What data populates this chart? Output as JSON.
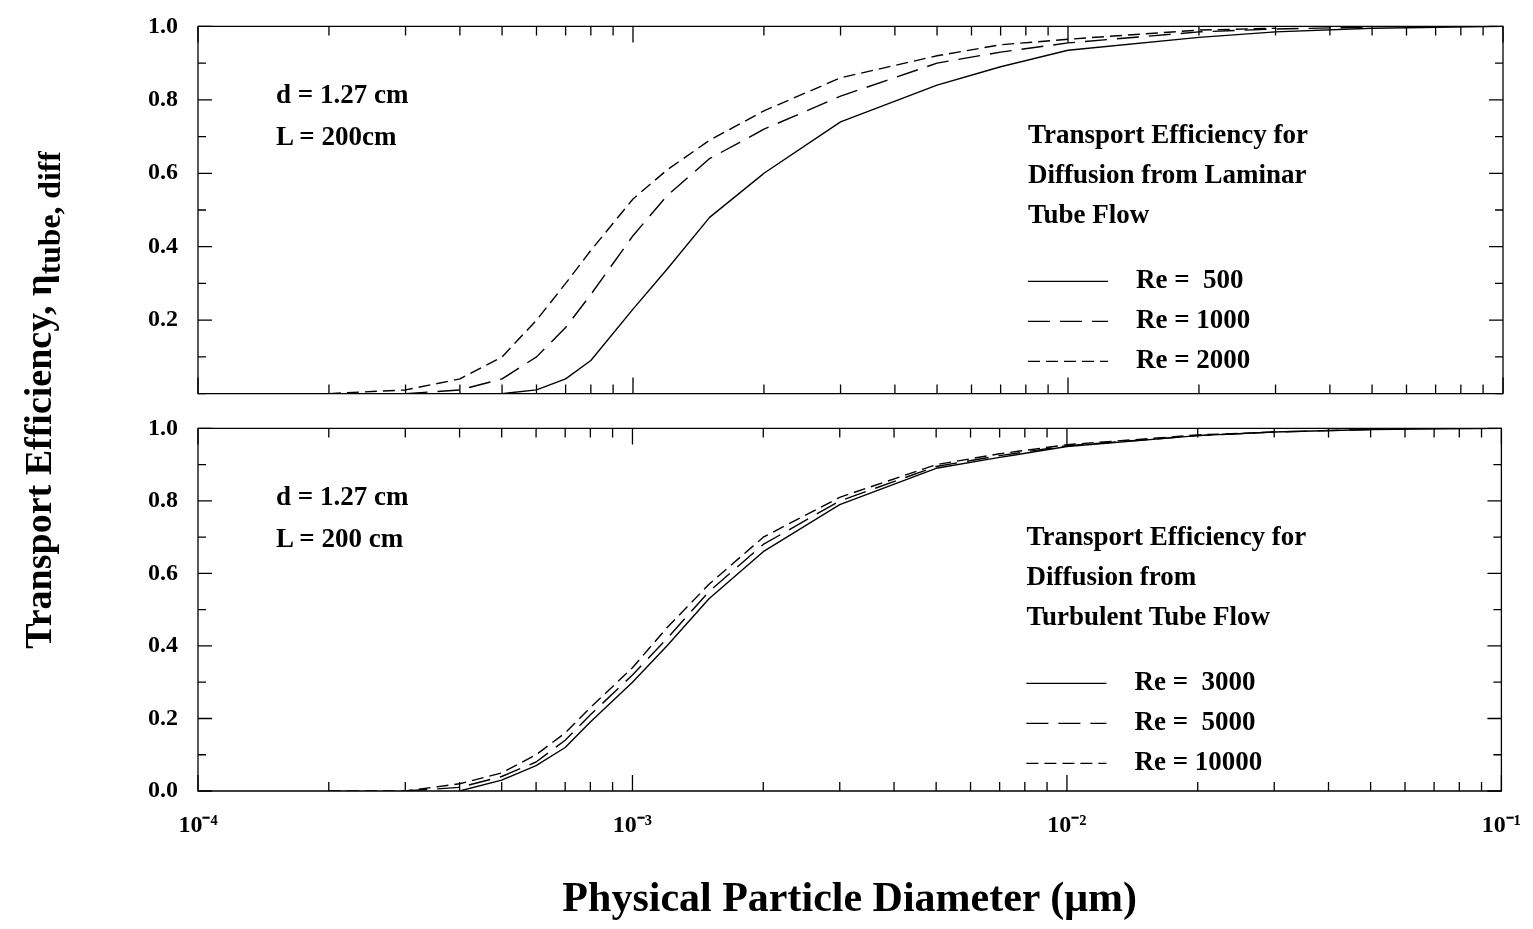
{
  "chart_data": [
    {
      "type": "line",
      "ylabel": "Transport Efficiency, η$_{tube, diff}$",
      "annotations": [
        "d = 1.27 cm",
        "L = 200cm"
      ],
      "legend_title": "Transport Efficiency for Diffusion from Laminar Tube Flow",
      "legend": "right",
      "log": "x",
      "tick_labels": "y",
      "xlim": [
        0.0001,
        0.1
      ],
      "xticks": [
        {
          "value": 0.0001,
          "label": null
        },
        {
          "value": 0.0002,
          "label": null
        },
        {
          "value": 0.0003,
          "label": null
        },
        {
          "value": 0.0004,
          "label": null
        },
        {
          "value": 0.0005,
          "label": null
        },
        {
          "value": 0.0006,
          "label": null
        },
        {
          "value": 0.0007,
          "label": null
        },
        {
          "value": 0.0008,
          "label": null
        },
        {
          "value": 0.0009,
          "label": null
        },
        {
          "value": 0.001,
          "label": null
        },
        {
          "value": 0.002,
          "label": null
        },
        {
          "value": 0.003,
          "label": null
        },
        {
          "value": 0.004,
          "label": null
        },
        {
          "value": 0.005,
          "label": null
        },
        {
          "value": 0.006,
          "label": null
        },
        {
          "value": 0.007,
          "label": null
        },
        {
          "value": 0.008,
          "label": null
        },
        {
          "value": 0.009,
          "label": null
        },
        {
          "value": 0.01,
          "label": null
        },
        {
          "value": 0.02,
          "label": null
        },
        {
          "value": 0.03,
          "label": null
        },
        {
          "value": 0.04,
          "label": null
        },
        {
          "value": 0.05,
          "label": null
        },
        {
          "value": 0.06,
          "label": null
        },
        {
          "value": 0.07,
          "label": null
        },
        {
          "value": 0.08,
          "label": null
        },
        {
          "value": 0.09,
          "label": null
        },
        {
          "value": 0.1,
          "label": null
        }
      ],
      "ylim": [
        0,
        1
      ],
      "yticks": [
        {
          "value": 0,
          "label": null
        },
        {
          "value": 0.1,
          "label": null
        },
        {
          "value": 0.2,
          "label": "0.2"
        },
        {
          "value": 0.3,
          "label": null
        },
        {
          "value": 0.4,
          "label": "0.4"
        },
        {
          "value": 0.5,
          "label": null
        },
        {
          "value": 0.6,
          "label": "0.6"
        },
        {
          "value": 0.7,
          "label": null
        },
        {
          "value": 0.8,
          "label": "0.8"
        },
        {
          "value": 0.9,
          "label": null
        },
        {
          "value": 1,
          "label": "1.0"
        }
      ],
      "series": [
        {
          "name": "Re =  500",
          "color": "#000000",
          "line_style": "solid",
          "x": [
            0.0005,
            0.0006,
            0.0007,
            0.0008,
            0.001,
            0.0012,
            0.0015,
            0.002,
            0.003,
            0.005,
            0.007,
            0.01,
            0.02,
            0.03,
            0.05,
            0.1
          ],
          "values": [
            0,
            0.01,
            0.04,
            0.09,
            0.23,
            0.34,
            0.48,
            0.6,
            0.74,
            0.84,
            0.89,
            0.935,
            0.97,
            0.985,
            0.995,
            1
          ]
        },
        {
          "name": "Re = 1000",
          "color": "#000000",
          "line_style": "dashed",
          "x": [
            0.0003,
            0.0004,
            0.0005,
            0.0006,
            0.0007,
            0.0008,
            0.001,
            0.0012,
            0.0015,
            0.002,
            0.003,
            0.005,
            0.007,
            0.01,
            0.02,
            0.03,
            0.05
          ],
          "values": [
            0,
            0.01,
            0.04,
            0.1,
            0.18,
            0.27,
            0.43,
            0.54,
            0.64,
            0.72,
            0.81,
            0.9,
            0.93,
            0.955,
            0.985,
            0.993,
            0.998
          ]
        },
        {
          "name": "Re = 2000",
          "color": "#000000",
          "line_style": "dashed",
          "x": [
            0.0002,
            0.0003,
            0.0004,
            0.0005,
            0.0006,
            0.0007,
            0.0008,
            0.001,
            0.0012,
            0.0015,
            0.002,
            0.003,
            0.005,
            0.007,
            0.01,
            0.02,
            0.03
          ],
          "values": [
            0,
            0.01,
            0.04,
            0.1,
            0.2,
            0.3,
            0.39,
            0.53,
            0.61,
            0.69,
            0.77,
            0.86,
            0.92,
            0.95,
            0.965,
            0.99,
            0.995
          ]
        }
      ]
    },
    {
      "type": "line",
      "xlabel": "Physical Particle Diameter (μm)",
      "annotations": [
        "d = 1.27 cm",
        "L = 200 cm"
      ],
      "legend_title": "Transport Efficiency for Diffusion from Turbulent Tube Flow",
      "legend": "right",
      "log": "x",
      "xlim": [
        0.0001,
        0.1
      ],
      "xticks": [
        {
          "value": 0.0001,
          "label": "10⁻⁴"
        },
        {
          "value": 0.0002,
          "label": null
        },
        {
          "value": 0.0003,
          "label": null
        },
        {
          "value": 0.0004,
          "label": null
        },
        {
          "value": 0.0005,
          "label": null
        },
        {
          "value": 0.0006,
          "label": null
        },
        {
          "value": 0.0007,
          "label": null
        },
        {
          "value": 0.0008,
          "label": null
        },
        {
          "value": 0.0009,
          "label": null
        },
        {
          "value": 0.001,
          "label": "10⁻³"
        },
        {
          "value": 0.002,
          "label": null
        },
        {
          "value": 0.003,
          "label": null
        },
        {
          "value": 0.004,
          "label": null
        },
        {
          "value": 0.005,
          "label": null
        },
        {
          "value": 0.006,
          "label": null
        },
        {
          "value": 0.007,
          "label": null
        },
        {
          "value": 0.008,
          "label": null
        },
        {
          "value": 0.009,
          "label": null
        },
        {
          "value": 0.01,
          "label": "10⁻²"
        },
        {
          "value": 0.02,
          "label": null
        },
        {
          "value": 0.03,
          "label": null
        },
        {
          "value": 0.04,
          "label": null
        },
        {
          "value": 0.05,
          "label": null
        },
        {
          "value": 0.06,
          "label": null
        },
        {
          "value": 0.07,
          "label": null
        },
        {
          "value": 0.08,
          "label": null
        },
        {
          "value": 0.09,
          "label": null
        },
        {
          "value": 0.1,
          "label": "10⁻¹"
        }
      ],
      "ylim": [
        0,
        1
      ],
      "yticks": [
        {
          "value": 0,
          "label": "0.0"
        },
        {
          "value": 0.1,
          "label": null
        },
        {
          "value": 0.2,
          "label": "0.2"
        },
        {
          "value": 0.3,
          "label": null
        },
        {
          "value": 0.4,
          "label": "0.4"
        },
        {
          "value": 0.5,
          "label": null
        },
        {
          "value": 0.6,
          "label": "0.6"
        },
        {
          "value": 0.7,
          "label": null
        },
        {
          "value": 0.8,
          "label": "0.8"
        },
        {
          "value": 0.9,
          "label": null
        },
        {
          "value": 1,
          "label": "1.0"
        }
      ],
      "series": [
        {
          "name": "Re =  3000",
          "color": "#000000",
          "line_style": "solid",
          "x": [
            0.0004,
            0.0005,
            0.0006,
            0.0007,
            0.0008,
            0.001,
            0.0012,
            0.0015,
            0.002,
            0.003,
            0.005,
            0.007,
            0.01,
            0.02,
            0.03,
            0.05,
            0.1
          ],
          "values": [
            0,
            0.03,
            0.07,
            0.12,
            0.19,
            0.3,
            0.4,
            0.53,
            0.66,
            0.79,
            0.89,
            0.92,
            0.95,
            0.98,
            0.99,
            0.997,
            1
          ]
        },
        {
          "name": "Re =  5000",
          "color": "#000000",
          "line_style": "dashed",
          "x": [
            0.0003,
            0.0004,
            0.0005,
            0.0006,
            0.0007,
            0.0008,
            0.001,
            0.0012,
            0.0015,
            0.002,
            0.003,
            0.005,
            0.007,
            0.01,
            0.02,
            0.03,
            0.05
          ],
          "values": [
            0,
            0.01,
            0.04,
            0.08,
            0.14,
            0.21,
            0.32,
            0.42,
            0.55,
            0.68,
            0.8,
            0.895,
            0.925,
            0.952,
            0.98,
            0.99,
            0.997
          ]
        },
        {
          "name": "Re = 10000",
          "color": "#000000",
          "line_style": "dashed",
          "x": [
            0.0002,
            0.0003,
            0.0004,
            0.0005,
            0.0006,
            0.0007,
            0.0008,
            0.001,
            0.0012,
            0.0015,
            0.002,
            0.003,
            0.005,
            0.007,
            0.01,
            0.02,
            0.03
          ],
          "values": [
            0,
            0,
            0.02,
            0.05,
            0.1,
            0.16,
            0.23,
            0.34,
            0.45,
            0.57,
            0.7,
            0.81,
            0.9,
            0.93,
            0.955,
            0.982,
            0.99
          ]
        }
      ]
    }
  ]
}
